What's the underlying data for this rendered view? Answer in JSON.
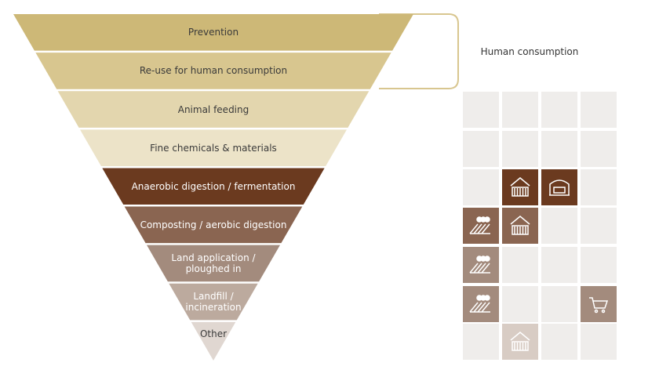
{
  "pyramid": {
    "levels": [
      {
        "label": "Prevention",
        "color": "#cdb877",
        "text_color": "#3a3a3a"
      },
      {
        "label": "Re-use for human consumption",
        "color": "#d8c68f",
        "text_color": "#3a3a3a"
      },
      {
        "label": "Animal feeding",
        "color": "#e3d6ae",
        "text_color": "#3a3a3a"
      },
      {
        "label": "Fine chemicals & materials",
        "color": "#ece3c8",
        "text_color": "#3a3a3a"
      },
      {
        "label": "Anaerobic digestion / fermentation",
        "color": "#6b3a1f",
        "text_color": "#ffffff"
      },
      {
        "label": "Composting / aerobic digestion",
        "color": "#8a6551",
        "text_color": "#ffffff"
      },
      {
        "label": "Land application / ploughed in",
        "color": "#a38b7d",
        "text_color": "#ffffff"
      },
      {
        "label": "Landfill / incineration",
        "color": "#bcaa9e",
        "text_color": "#ffffff"
      },
      {
        "label": "Other",
        "color": "#e0d7d1",
        "text_color": "#3a3a3a"
      }
    ]
  },
  "bracket": {
    "label": "Human consumption"
  }
}
